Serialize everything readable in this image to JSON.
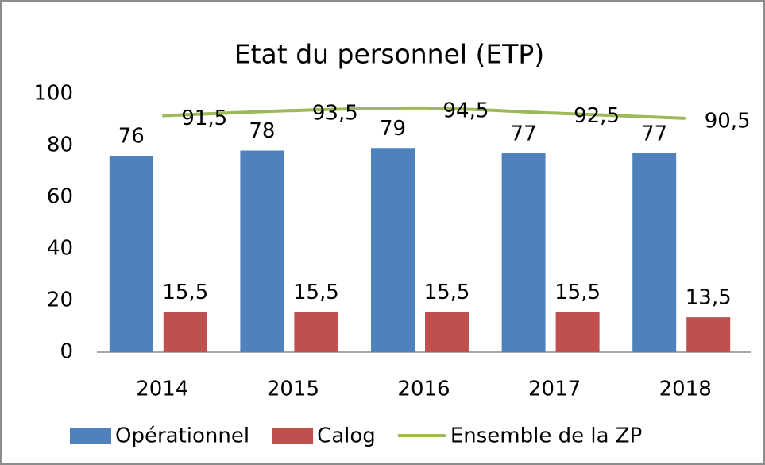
{
  "chart_data": {
    "type": "bar_line",
    "title": "Etat du personnel (ETP)",
    "categories": [
      "2014",
      "2015",
      "2016",
      "2017",
      "2018"
    ],
    "series": [
      {
        "name": "Opérationnel",
        "color": "#4f81bd",
        "type": "bar",
        "values": [
          76,
          78,
          79,
          77,
          77
        ]
      },
      {
        "name": "Calog",
        "color": "#c0504d",
        "type": "bar",
        "values": [
          15.5,
          15.5,
          15.5,
          15.5,
          13.5
        ],
        "value_labels": [
          "15,5",
          "15,5",
          "15,5",
          "15,5",
          "13,5"
        ]
      },
      {
        "name": "Ensemble de la ZP",
        "color": "#9bbb59",
        "type": "line",
        "values": [
          91.5,
          93.5,
          94.5,
          92.5,
          90.5
        ],
        "value_labels": [
          "91,5",
          "93,5",
          "94,5",
          "92,5",
          "90,5"
        ]
      }
    ],
    "ylim": [
      0,
      100
    ],
    "yticks": [
      0,
      20,
      40,
      60,
      80,
      100
    ],
    "grid": false,
    "legend": "bottom"
  }
}
